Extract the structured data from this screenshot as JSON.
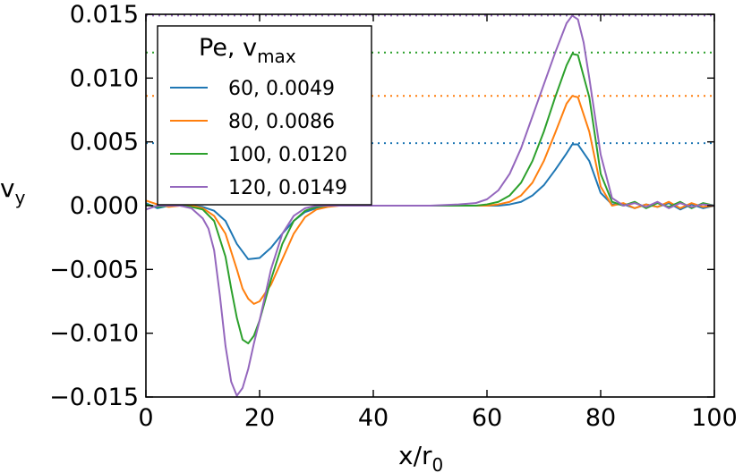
{
  "chart_data": {
    "type": "line",
    "title": "",
    "xlabel": "x/r",
    "xlabel_sub": "0",
    "ylabel": "v",
    "ylabel_sub": "y",
    "xlim": [
      0,
      100
    ],
    "ylim": [
      -0.015,
      0.015
    ],
    "xticks": [
      0,
      20,
      40,
      60,
      80,
      100
    ],
    "xtick_labels": [
      "0",
      "20",
      "40",
      "60",
      "80",
      "100"
    ],
    "yticks": [
      -0.015,
      -0.01,
      -0.005,
      0.0,
      0.005,
      0.01,
      0.015
    ],
    "ytick_labels": [
      "−0.015",
      "−0.010",
      "−0.005",
      "0.000",
      "0.005",
      "0.010",
      "0.015"
    ],
    "legend": {
      "title": "Pe, v",
      "title_sub": "max",
      "placement": "top-left"
    },
    "series": [
      {
        "name": "60, 0.0049",
        "color": "#1f77b4",
        "vmax": 0.0049,
        "x": [
          0,
          2,
          4,
          6,
          8,
          10,
          12,
          14,
          16,
          18,
          20,
          22,
          24,
          26,
          28,
          30,
          32,
          34,
          36,
          40,
          45,
          50,
          55,
          60,
          62,
          64,
          66,
          68,
          70,
          72,
          74,
          75,
          76,
          78,
          80,
          82,
          84,
          86,
          88,
          90,
          92,
          94,
          96,
          98,
          100
        ],
        "y": [
          0.0002,
          -0.0002,
          0.0,
          0.0,
          0.0,
          -0.0001,
          -0.0004,
          -0.0012,
          -0.003,
          -0.0042,
          -0.0041,
          -0.0033,
          -0.0022,
          -0.0012,
          -0.0005,
          -0.0002,
          0.0,
          0.0,
          0.0,
          0.0,
          0.0,
          0.0,
          0.0,
          0.0,
          0.0,
          0.0001,
          0.0003,
          0.0008,
          0.0016,
          0.0028,
          0.0041,
          0.0048,
          0.0048,
          0.0035,
          0.001,
          0.0001,
          0.0001,
          -0.0002,
          0.0001,
          -0.0001,
          0.0002,
          -0.0003,
          0.0001,
          -0.0002,
          0.0
        ]
      },
      {
        "name": "80, 0.0086",
        "color": "#ff7f0e",
        "vmax": 0.0086,
        "x": [
          0,
          2,
          4,
          6,
          8,
          10,
          12,
          14,
          16,
          17,
          18,
          19,
          20,
          22,
          24,
          26,
          28,
          30,
          32,
          34,
          36,
          40,
          45,
          50,
          55,
          60,
          62,
          64,
          66,
          68,
          70,
          72,
          74,
          75,
          76,
          78,
          80,
          82,
          84,
          86,
          88,
          90,
          92,
          94,
          96,
          98,
          100
        ],
        "y": [
          0.0004,
          0.0001,
          -0.0001,
          0.0,
          0.0,
          -0.0002,
          -0.0008,
          -0.0022,
          -0.005,
          -0.0065,
          -0.0073,
          -0.0077,
          -0.0075,
          -0.0062,
          -0.0042,
          -0.0022,
          -0.0009,
          -0.0003,
          -0.0001,
          0.0,
          0.0,
          0.0,
          0.0,
          0.0,
          0.0,
          0.0,
          0.0001,
          0.0003,
          0.0008,
          0.0018,
          0.0035,
          0.0057,
          0.008,
          0.0086,
          0.0085,
          0.0058,
          0.0015,
          0.0,
          0.0002,
          -0.0002,
          0.0001,
          -0.0001,
          0.0003,
          -0.0002,
          0.0002,
          -0.0001,
          0.0
        ]
      },
      {
        "name": "100, 0.0120",
        "color": "#2ca02c",
        "vmax": 0.012,
        "x": [
          0,
          2,
          4,
          6,
          8,
          10,
          12,
          14,
          15,
          16,
          17,
          18,
          19,
          20,
          22,
          24,
          26,
          28,
          30,
          32,
          34,
          36,
          40,
          45,
          50,
          55,
          58,
          60,
          62,
          64,
          66,
          68,
          70,
          72,
          74,
          75,
          76,
          78,
          80,
          82,
          84,
          86,
          88,
          90,
          92,
          94,
          96,
          98,
          100
        ],
        "y": [
          0.0001,
          -0.0001,
          0.0,
          0.0,
          -0.0001,
          -0.0003,
          -0.0012,
          -0.004,
          -0.0065,
          -0.0088,
          -0.0105,
          -0.0108,
          -0.0102,
          -0.009,
          -0.0058,
          -0.003,
          -0.0012,
          -0.0004,
          -0.0001,
          0.0,
          0.0,
          0.0,
          0.0,
          0.0,
          0.0,
          0.0,
          0.0,
          0.0001,
          0.0003,
          0.0008,
          0.0018,
          0.0035,
          0.0058,
          0.0085,
          0.011,
          0.0119,
          0.0118,
          0.0085,
          0.0025,
          0.0003,
          0.0,
          0.0003,
          -0.0002,
          0.0002,
          -0.0001,
          0.0003,
          -0.0002,
          0.0002,
          0.0
        ]
      },
      {
        "name": "120, 0.0149",
        "color": "#9467bd",
        "vmax": 0.0149,
        "x": [
          0,
          2,
          4,
          6,
          8,
          10,
          11,
          12,
          13,
          14,
          15,
          16,
          17,
          18,
          19,
          20,
          22,
          24,
          26,
          28,
          30,
          32,
          34,
          36,
          40,
          45,
          50,
          55,
          58,
          60,
          62,
          64,
          66,
          68,
          70,
          72,
          74,
          75,
          76,
          77,
          78,
          80,
          82,
          84,
          86,
          88,
          90,
          92,
          94,
          96,
          98,
          100
        ],
        "y": [
          -0.0003,
          0.0,
          0.0,
          0.0,
          -0.0002,
          -0.001,
          -0.0018,
          -0.0035,
          -0.007,
          -0.011,
          -0.0138,
          -0.0149,
          -0.0143,
          -0.0128,
          -0.0108,
          -0.009,
          -0.005,
          -0.0022,
          -0.0008,
          -0.0002,
          0.0,
          0.0,
          0.0,
          0.0,
          0.0,
          0.0,
          0.0,
          0.0001,
          0.0002,
          0.0005,
          0.0012,
          0.0025,
          0.0045,
          0.007,
          0.0095,
          0.012,
          0.0143,
          0.0149,
          0.0146,
          0.0128,
          0.01,
          0.004,
          0.0006,
          0.0,
          0.0002,
          -0.0001,
          0.0003,
          -0.0002,
          0.0002,
          -0.0001,
          0.0001,
          0.0
        ]
      }
    ]
  }
}
